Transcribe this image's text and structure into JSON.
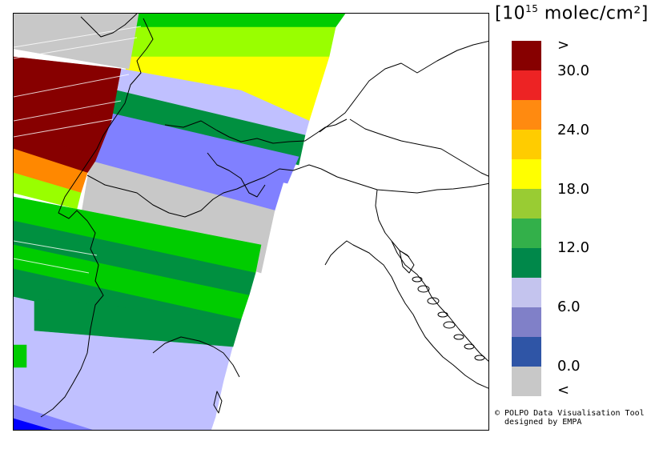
{
  "legend": {
    "title_prefix": "[10",
    "title_exponent": "15",
    "title_suffix": " molec/cm²]",
    "labels": [
      ">",
      "30.0",
      "24.0",
      "18.0",
      "12.0",
      "6.0",
      "0.0",
      "<"
    ],
    "colors": [
      "#870000",
      "#ed2324",
      "#ff8a10",
      "#ffcc00",
      "#ffff00",
      "#99cc33",
      "#33b04a",
      "#00884a",
      "#c4c4ee",
      "#8080c8",
      "#2f55a6",
      "#c8c8c8"
    ]
  },
  "credit": {
    "line1": "© POLPO Data Visualisation Tool",
    "line2": "  designed by EMPA"
  },
  "swath_colors": {
    "dark_red": "#870000",
    "orange": "#ff8800",
    "yellow": "#ffff00",
    "light_green": "#99ff00",
    "green": "#00cc00",
    "dark_green": "#009040",
    "light_blue": "#c0c0ff",
    "medium_blue": "#8080ff",
    "blue": "#0000ff",
    "gray": "#c8c8c8"
  }
}
